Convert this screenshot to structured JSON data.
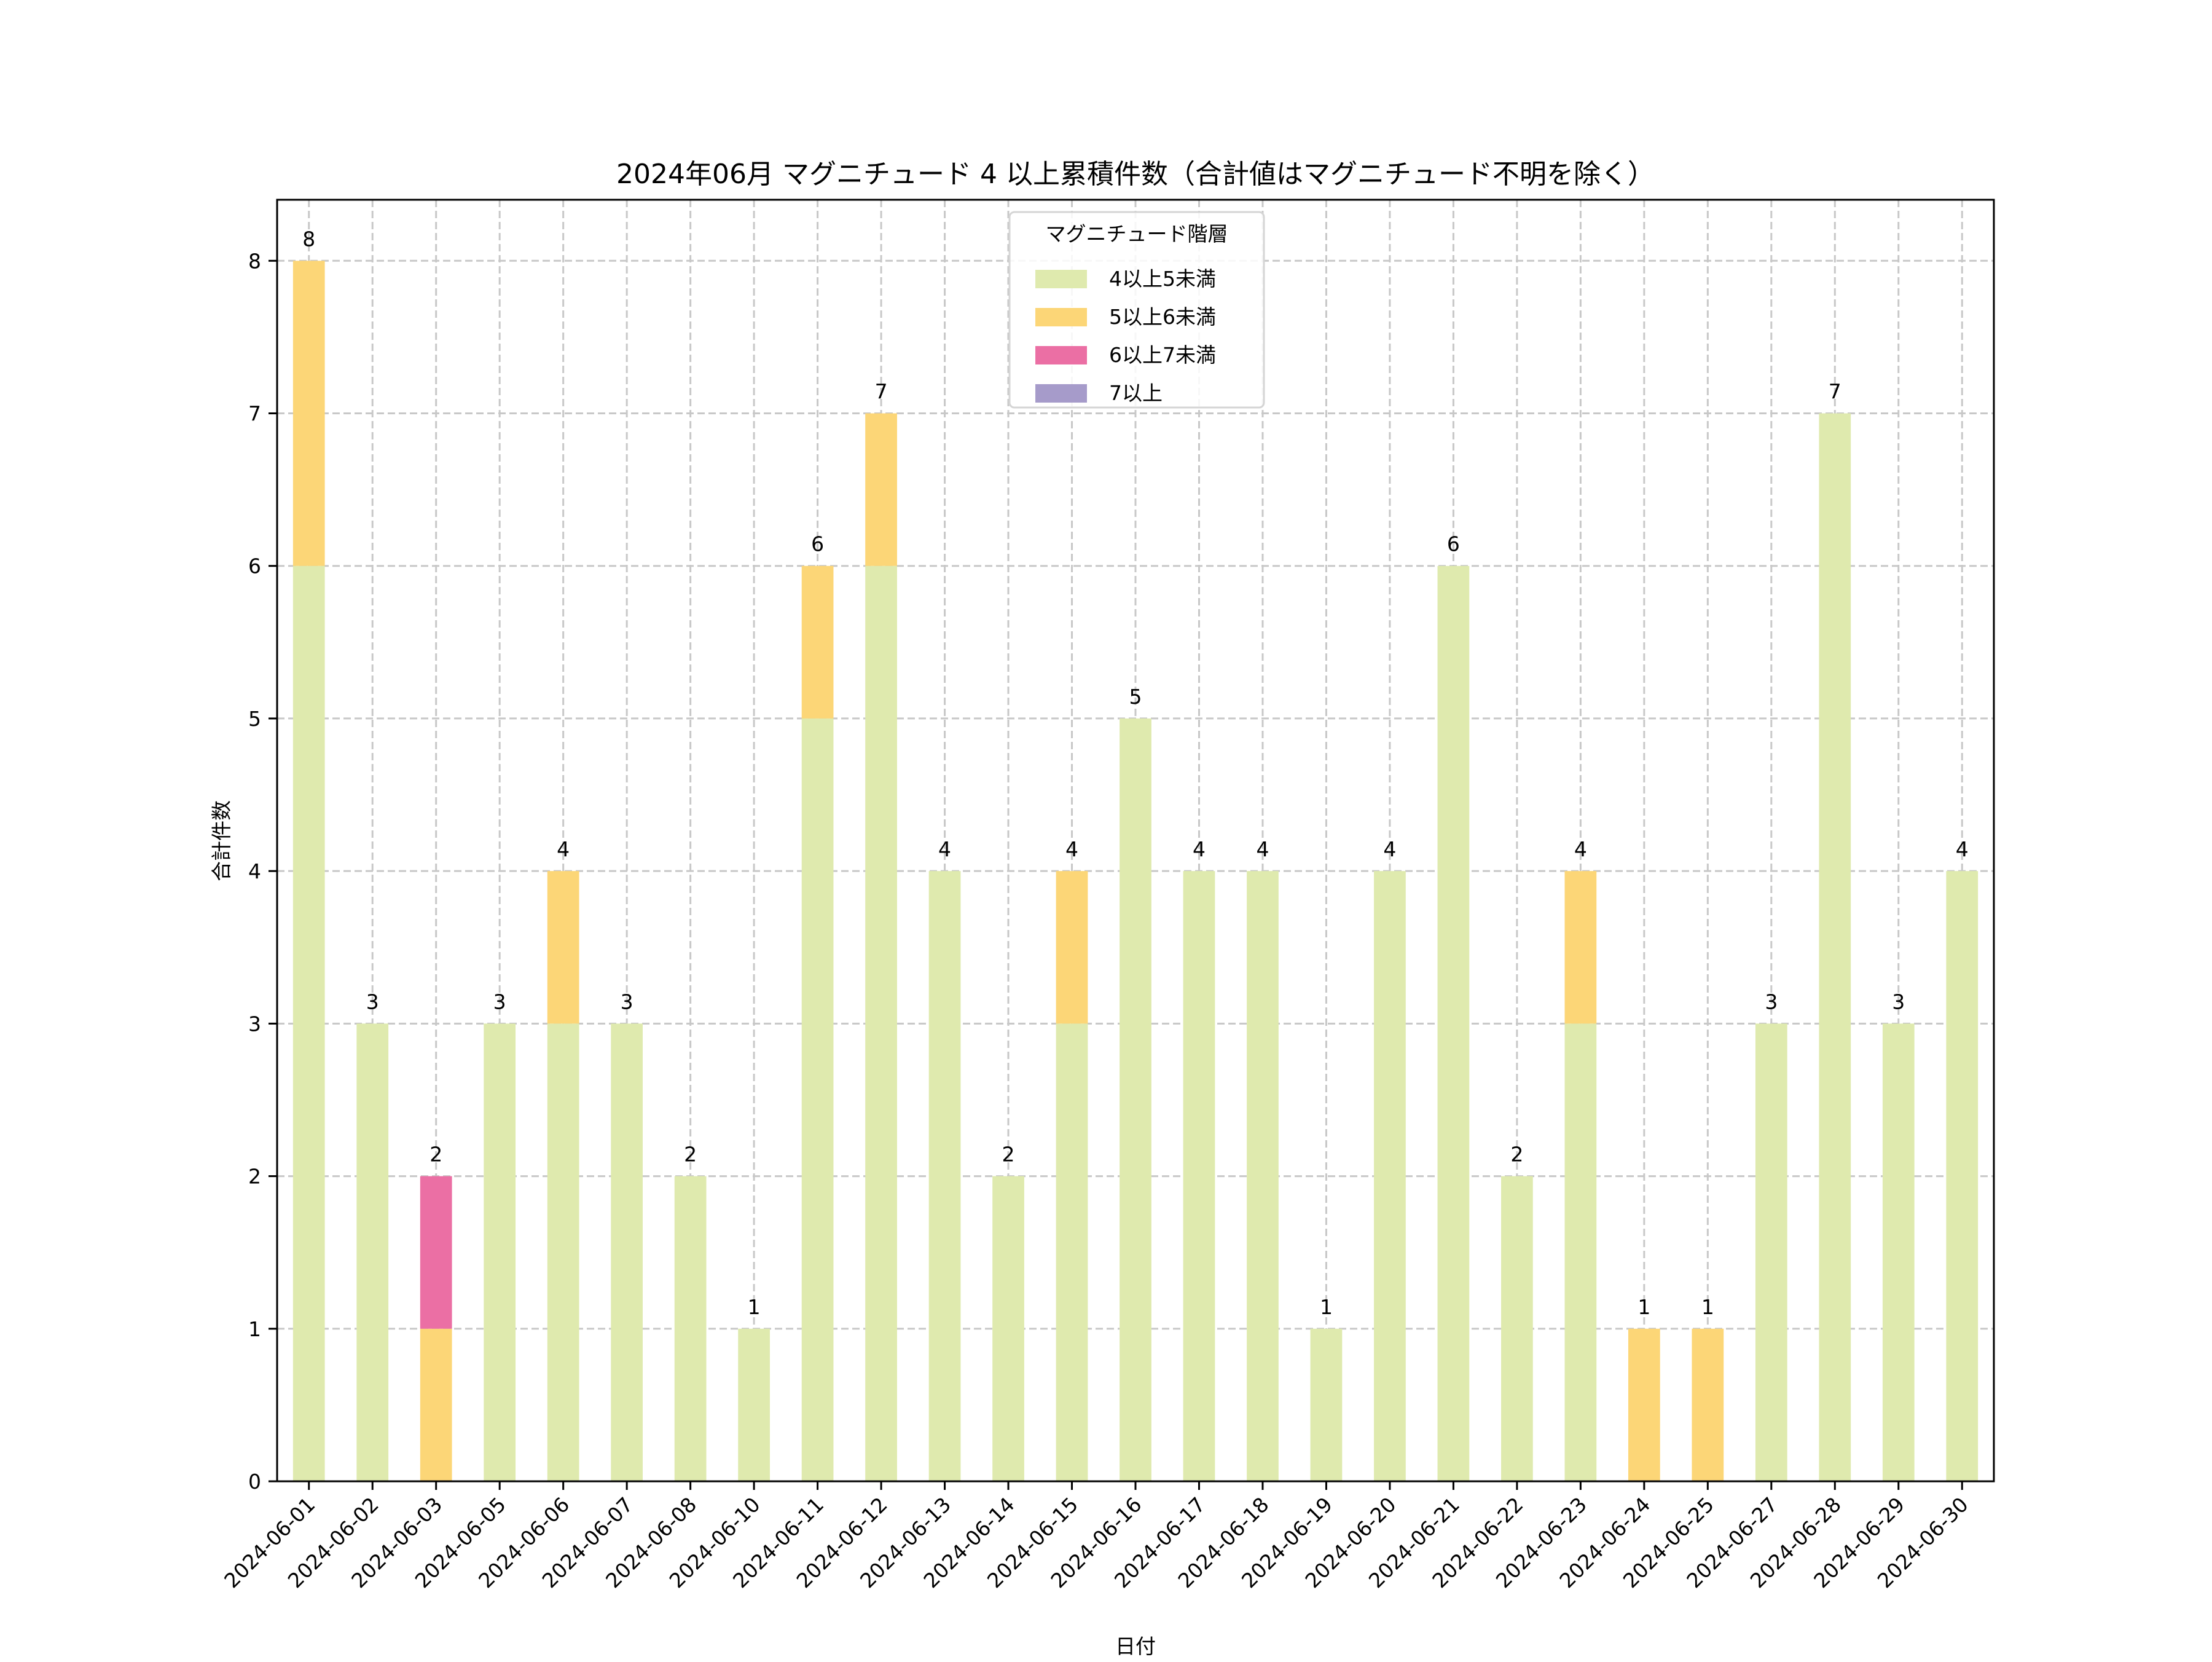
{
  "chart_data": {
    "type": "bar",
    "stacked": true,
    "title": "2024年06月 マグニチュード 4 以上累積件数（合計値はマグニチュード不明を除く）",
    "xlabel": "日付",
    "ylabel": "合計件数",
    "ylim": [
      0,
      8.4
    ],
    "yticks": [
      0,
      1,
      2,
      3,
      4,
      5,
      6,
      7,
      8
    ],
    "grid": true,
    "legend": {
      "title": "マグニチュード階層",
      "placement": "top-center"
    },
    "categories": [
      "2024-06-01",
      "2024-06-02",
      "2024-06-03",
      "2024-06-05",
      "2024-06-06",
      "2024-06-07",
      "2024-06-08",
      "2024-06-10",
      "2024-06-11",
      "2024-06-12",
      "2024-06-13",
      "2024-06-14",
      "2024-06-15",
      "2024-06-16",
      "2024-06-17",
      "2024-06-18",
      "2024-06-19",
      "2024-06-20",
      "2024-06-21",
      "2024-06-22",
      "2024-06-23",
      "2024-06-24",
      "2024-06-25",
      "2024-06-27",
      "2024-06-28",
      "2024-06-29",
      "2024-06-30"
    ],
    "series": [
      {
        "name": "4以上5未満",
        "color": "#dfeaae",
        "values": [
          6,
          3,
          0,
          3,
          3,
          3,
          2,
          1,
          5,
          6,
          4,
          2,
          3,
          5,
          4,
          4,
          1,
          4,
          6,
          2,
          3,
          0,
          0,
          3,
          7,
          3,
          4
        ]
      },
      {
        "name": "5以上6未満",
        "color": "#fcd677",
        "values": [
          2,
          0,
          1,
          0,
          1,
          0,
          0,
          0,
          1,
          1,
          0,
          0,
          1,
          0,
          0,
          0,
          0,
          0,
          0,
          0,
          1,
          1,
          1,
          0,
          0,
          0,
          0
        ]
      },
      {
        "name": "6以上7未満",
        "color": "#eb6fa4",
        "values": [
          0,
          0,
          1,
          0,
          0,
          0,
          0,
          0,
          0,
          0,
          0,
          0,
          0,
          0,
          0,
          0,
          0,
          0,
          0,
          0,
          0,
          0,
          0,
          0,
          0,
          0,
          0
        ]
      },
      {
        "name": "7以上",
        "color": "#a69bca",
        "values": [
          0,
          0,
          0,
          0,
          0,
          0,
          0,
          0,
          0,
          0,
          0,
          0,
          0,
          0,
          0,
          0,
          0,
          0,
          0,
          0,
          0,
          0,
          0,
          0,
          0,
          0,
          0
        ]
      }
    ],
    "totals": [
      8,
      3,
      2,
      3,
      4,
      3,
      2,
      1,
      6,
      7,
      4,
      2,
      4,
      5,
      4,
      4,
      1,
      4,
      6,
      2,
      4,
      1,
      1,
      3,
      7,
      3,
      4
    ]
  }
}
